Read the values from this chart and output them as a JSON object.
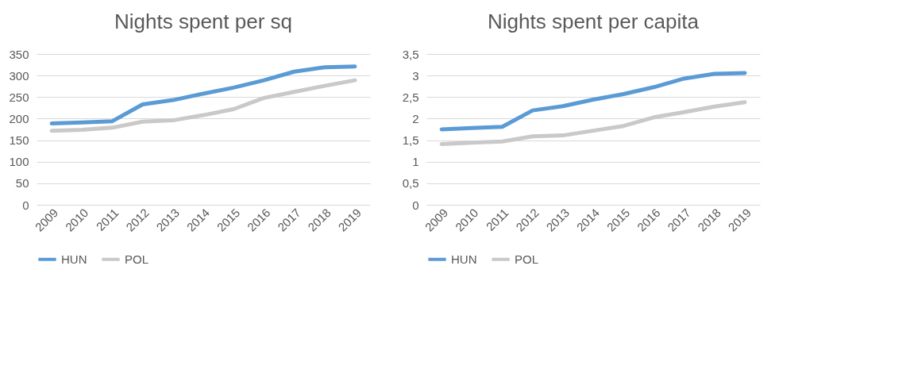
{
  "chart_data": [
    {
      "type": "line",
      "title": "Nights spent per sq",
      "categories": [
        "2009",
        "2010",
        "2011",
        "2012",
        "2013",
        "2014",
        "2015",
        "2016",
        "2017",
        "2018",
        "2019"
      ],
      "series": [
        {
          "name": "HUN",
          "color": "#5b9bd5",
          "values": [
            189,
            191,
            194,
            233,
            243,
            258,
            272,
            289,
            309,
            319,
            321
          ]
        },
        {
          "name": "POL",
          "color": "#c9c9c9",
          "values": [
            172,
            174,
            179,
            193,
            196,
            208,
            222,
            248,
            262,
            276,
            289
          ]
        }
      ],
      "ylim": [
        0,
        350
      ],
      "yticks": [
        0,
        50,
        100,
        150,
        200,
        250,
        300,
        350
      ],
      "grid": "y",
      "legend": "bottom",
      "marker": "none",
      "line_style": "solid"
    },
    {
      "type": "line",
      "title": "Nights spent per capita",
      "categories": [
        "2009",
        "2010",
        "2011",
        "2012",
        "2013",
        "2014",
        "2015",
        "2016",
        "2017",
        "2018",
        "2019"
      ],
      "series": [
        {
          "name": "HUN",
          "color": "#5b9bd5",
          "values": [
            1.75,
            1.78,
            1.81,
            2.19,
            2.29,
            2.44,
            2.57,
            2.73,
            2.93,
            3.04,
            3.06
          ]
        },
        {
          "name": "POL",
          "color": "#c9c9c9",
          "values": [
            1.41,
            1.44,
            1.47,
            1.59,
            1.61,
            1.72,
            1.83,
            2.03,
            2.15,
            2.28,
            2.38
          ]
        }
      ],
      "ylim": [
        0,
        3.5
      ],
      "yticks": [
        0,
        {
          "value": 0.5,
          "label": "0,5"
        },
        1,
        {
          "value": 1.5,
          "label": "1,5"
        },
        2,
        {
          "value": 2.5,
          "label": "2,5"
        },
        3,
        {
          "value": 3.5,
          "label": "3,5"
        }
      ],
      "grid": "y",
      "legend": "bottom",
      "marker": "none",
      "line_style": "solid"
    }
  ]
}
